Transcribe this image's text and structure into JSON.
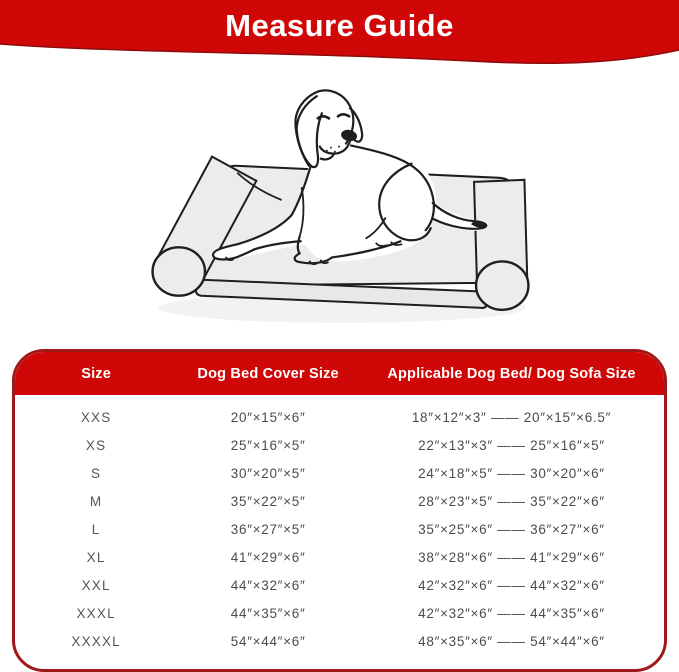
{
  "header": {
    "title": "Measure Guide"
  },
  "colors": {
    "banner_red": "#d00707",
    "table_header_red": "#d00707",
    "table_border_red": "#9e1a1a",
    "header_text": "#ffffff",
    "row_text": "#4c4c4c",
    "bed_fill": "#ececec",
    "line_art": "#1f1f1f"
  },
  "illustration": {
    "description": "Line drawing of a dog lying on a bolster dog sofa bed"
  },
  "chart_data": {
    "type": "table",
    "title": "Measure Guide",
    "columns": [
      "Size",
      "Dog Bed Cover Size",
      "Applicable Dog Bed/ Dog Sofa Size"
    ],
    "rows": [
      {
        "size": "XXS",
        "cover": "20″×15″×6″",
        "applicable": "18″×12″×3″ —— 20″×15″×6.5″"
      },
      {
        "size": "XS",
        "cover": "25″×16″×5″",
        "applicable": "22″×13″×3″ —— 25″×16″×5″"
      },
      {
        "size": "S",
        "cover": "30″×20″×5″",
        "applicable": "24″×18″×5″ —— 30″×20″×6″"
      },
      {
        "size": "M",
        "cover": "35″×22″×5″",
        "applicable": "28″×23″×5″ —— 35″×22″×6″"
      },
      {
        "size": "L",
        "cover": "36″×27″×5″",
        "applicable": "35″×25″×6″ —— 36″×27″×6″"
      },
      {
        "size": "XL",
        "cover": "41″×29″×6″",
        "applicable": "38″×28″×6″ —— 41″×29″×6″"
      },
      {
        "size": "XXL",
        "cover": "44″×32″×6″",
        "applicable": "42″×32″×6″ —— 44″×32″×6″"
      },
      {
        "size": "XXXL",
        "cover": "44″×35″×6″",
        "applicable": "42″×32″×6″ —— 44″×35″×6″"
      },
      {
        "size": "XXXXL",
        "cover": "54″×44″×6″",
        "applicable": "48″×35″×6″ —— 54″×44″×6″"
      }
    ]
  }
}
